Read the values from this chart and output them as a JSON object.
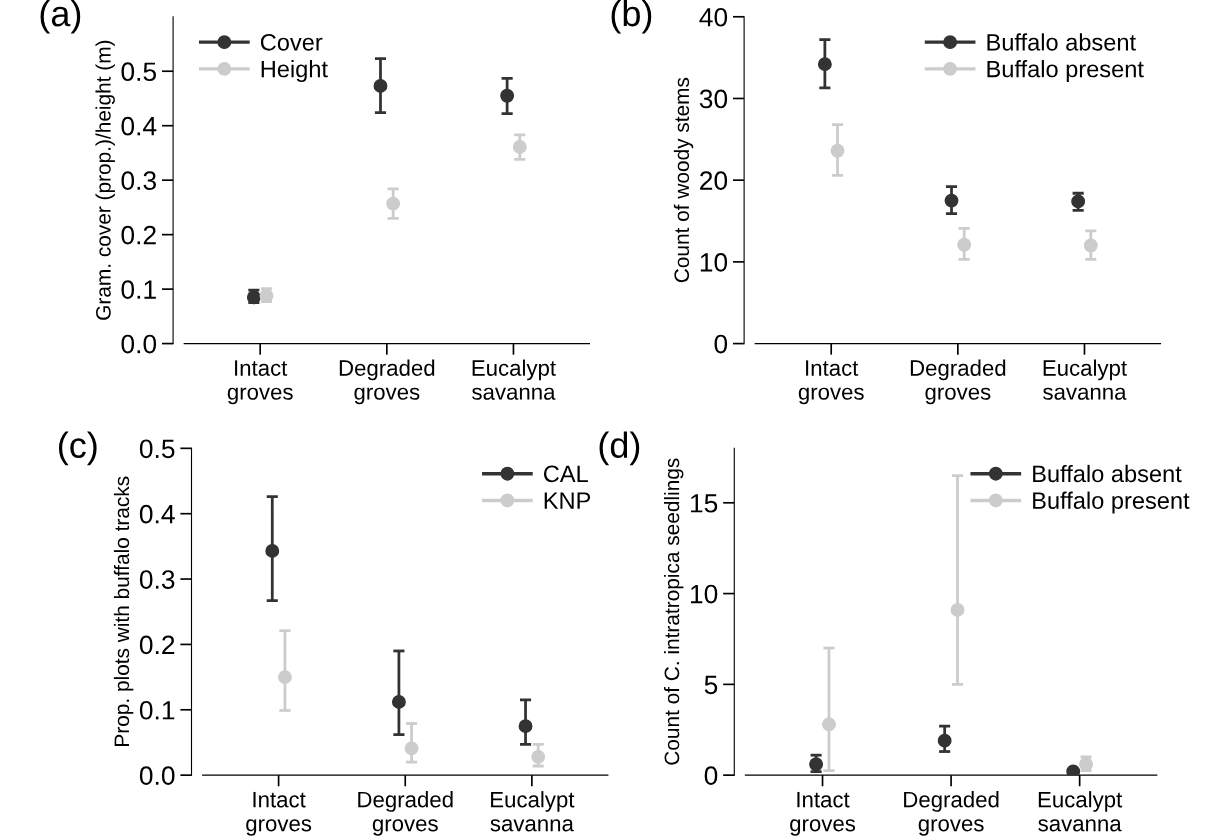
{
  "chart_data": [
    {
      "type": "scatter",
      "title": "(a)",
      "ylabel": "Gram. cover (prop.)/height (m)",
      "categories": [
        "Intact\ngroves",
        "Degraded\ngroves",
        "Eucalypt\nsavanna"
      ],
      "ylim": [
        0,
        0.6
      ],
      "yticks": [
        {
          "value": 0,
          "label": "0.0"
        },
        0.1,
        0.2,
        0.3,
        0.4,
        0.5
      ],
      "legend": "top left",
      "marker": "circle",
      "grid": false,
      "series": [
        {
          "name": "Cover",
          "color": "#333333",
          "values": [
            0.085,
            0.473,
            0.455
          ],
          "errors": [
            [
              0.075,
              0.098
            ],
            [
              0.424,
              0.523
            ],
            [
              0.422,
              0.487
            ]
          ]
        },
        {
          "name": "Height",
          "color": "#cccccc",
          "values": [
            0.088,
            0.257,
            0.361
          ],
          "errors": [
            [
              0.077,
              0.101
            ],
            [
              0.23,
              0.284
            ],
            [
              0.338,
              0.383
            ]
          ]
        }
      ]
    },
    {
      "type": "scatter",
      "title": "(b)",
      "ylabel": "Count of woody stems",
      "categories": [
        "Intact\ngroves",
        "Degraded\ngroves",
        "Eucalypt\nsavanna"
      ],
      "ylim": [
        0,
        40
      ],
      "yticks": [
        0,
        10,
        20,
        30,
        40
      ],
      "legend": "top right",
      "marker": "circle",
      "grid": false,
      "series": [
        {
          "name": "Buffalo absent",
          "color": "#333333",
          "values": [
            34.2,
            17.5,
            17.4
          ],
          "errors": [
            [
              31.3,
              37.2
            ],
            [
              15.9,
              19.2
            ],
            [
              16.3,
              18.4
            ]
          ]
        },
        {
          "name": "Buffalo present",
          "color": "#cccccc",
          "values": [
            23.6,
            12.1,
            12.0
          ],
          "errors": [
            [
              20.6,
              26.8
            ],
            [
              10.3,
              14.1
            ],
            [
              10.3,
              13.8
            ]
          ]
        }
      ]
    },
    {
      "type": "scatter",
      "title": "(c)",
      "ylabel": "Prop. plots with buffalo tracks",
      "categories": [
        "Intact\ngroves",
        "Degraded\ngroves",
        "Eucalypt\nsavanna"
      ],
      "ylim": [
        0,
        0.5
      ],
      "yticks": [
        {
          "value": 0,
          "label": "0.0"
        },
        0.1,
        0.2,
        0.3,
        0.4,
        0.5
      ],
      "legend": "top right",
      "marker": "circle",
      "grid": false,
      "series": [
        {
          "name": "CAL",
          "color": "#333333",
          "values": [
            0.343,
            0.112,
            0.075
          ],
          "errors": [
            [
              0.267,
              0.426
            ],
            [
              0.062,
              0.19
            ],
            [
              0.047,
              0.115
            ]
          ]
        },
        {
          "name": "KNP",
          "color": "#cccccc",
          "values": [
            0.15,
            0.041,
            0.028
          ],
          "errors": [
            [
              0.099,
              0.221
            ],
            [
              0.02,
              0.079
            ],
            [
              0.014,
              0.047
            ]
          ]
        }
      ]
    },
    {
      "type": "scatter",
      "title": "(d)",
      "ylabel": "Count of C. intratropica seedlings",
      "categories": [
        "Intact\ngroves",
        "Degraded\ngroves",
        "Eucalypt\nsavanna"
      ],
      "ylim": [
        0,
        18
      ],
      "yticks": [
        0,
        5,
        10,
        15
      ],
      "legend": "top right",
      "marker": "circle",
      "grid": false,
      "series": [
        {
          "name": "Buffalo absent",
          "color": "#333333",
          "values": [
            0.6,
            1.9,
            0.2
          ],
          "errors": [
            [
              0.2,
              1.1
            ],
            [
              1.3,
              2.7
            ],
            null
          ]
        },
        {
          "name": "Buffalo present",
          "color": "#cccccc",
          "values": [
            2.8,
            9.1,
            0.6
          ],
          "errors": [
            [
              0.25,
              7.0
            ],
            [
              5.0,
              16.5
            ],
            [
              0.25,
              1.0
            ]
          ]
        }
      ]
    }
  ]
}
